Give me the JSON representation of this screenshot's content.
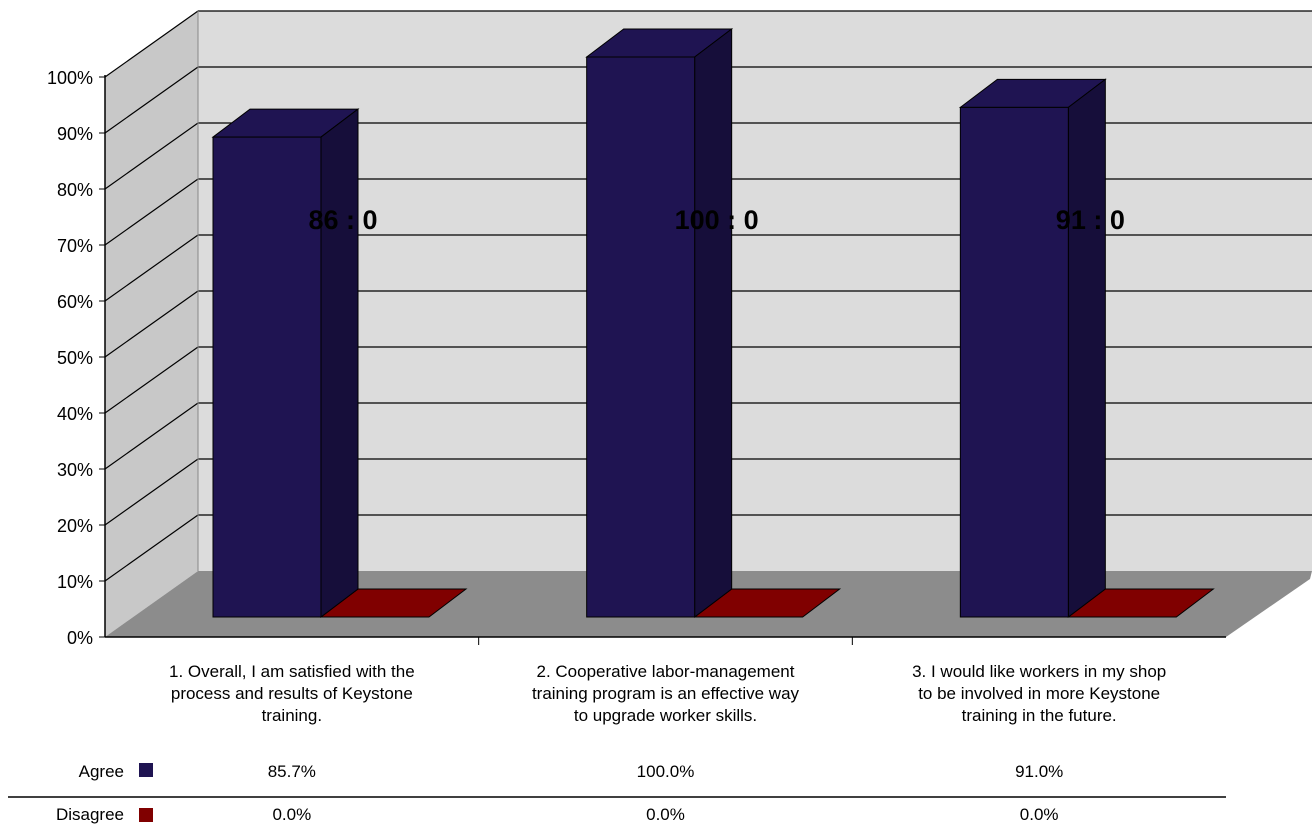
{
  "chart_data": {
    "type": "bar",
    "categories": [
      [
        "1. Overall, I am satisfied with the",
        "process and results of Keystone",
        "training."
      ],
      [
        "2. Cooperative labor-management",
        "training program is an effective way",
        "to upgrade worker skills."
      ],
      [
        "3. I would like workers in my shop",
        "to be involved in more Keystone",
        "training in the future."
      ]
    ],
    "series": [
      {
        "name": "Agree",
        "values": [
          85.7,
          100.0,
          91.0
        ],
        "labels": [
          "85.7%",
          "100.0%",
          "91.0%"
        ],
        "color": "#1f1452"
      },
      {
        "name": "Disagree",
        "values": [
          0.0,
          0.0,
          0.0
        ],
        "labels": [
          "0.0%",
          "0.0%",
          "0.0%"
        ],
        "color": "#800000"
      }
    ],
    "annotations": [
      "86 : 0",
      "100 : 0",
      "91 : 0"
    ],
    "yticks": [
      "0%",
      "10%",
      "20%",
      "30%",
      "40%",
      "50%",
      "60%",
      "70%",
      "80%",
      "90%",
      "100%"
    ],
    "ylim": [
      0,
      100
    ],
    "grid": true,
    "legend": "data-table"
  }
}
